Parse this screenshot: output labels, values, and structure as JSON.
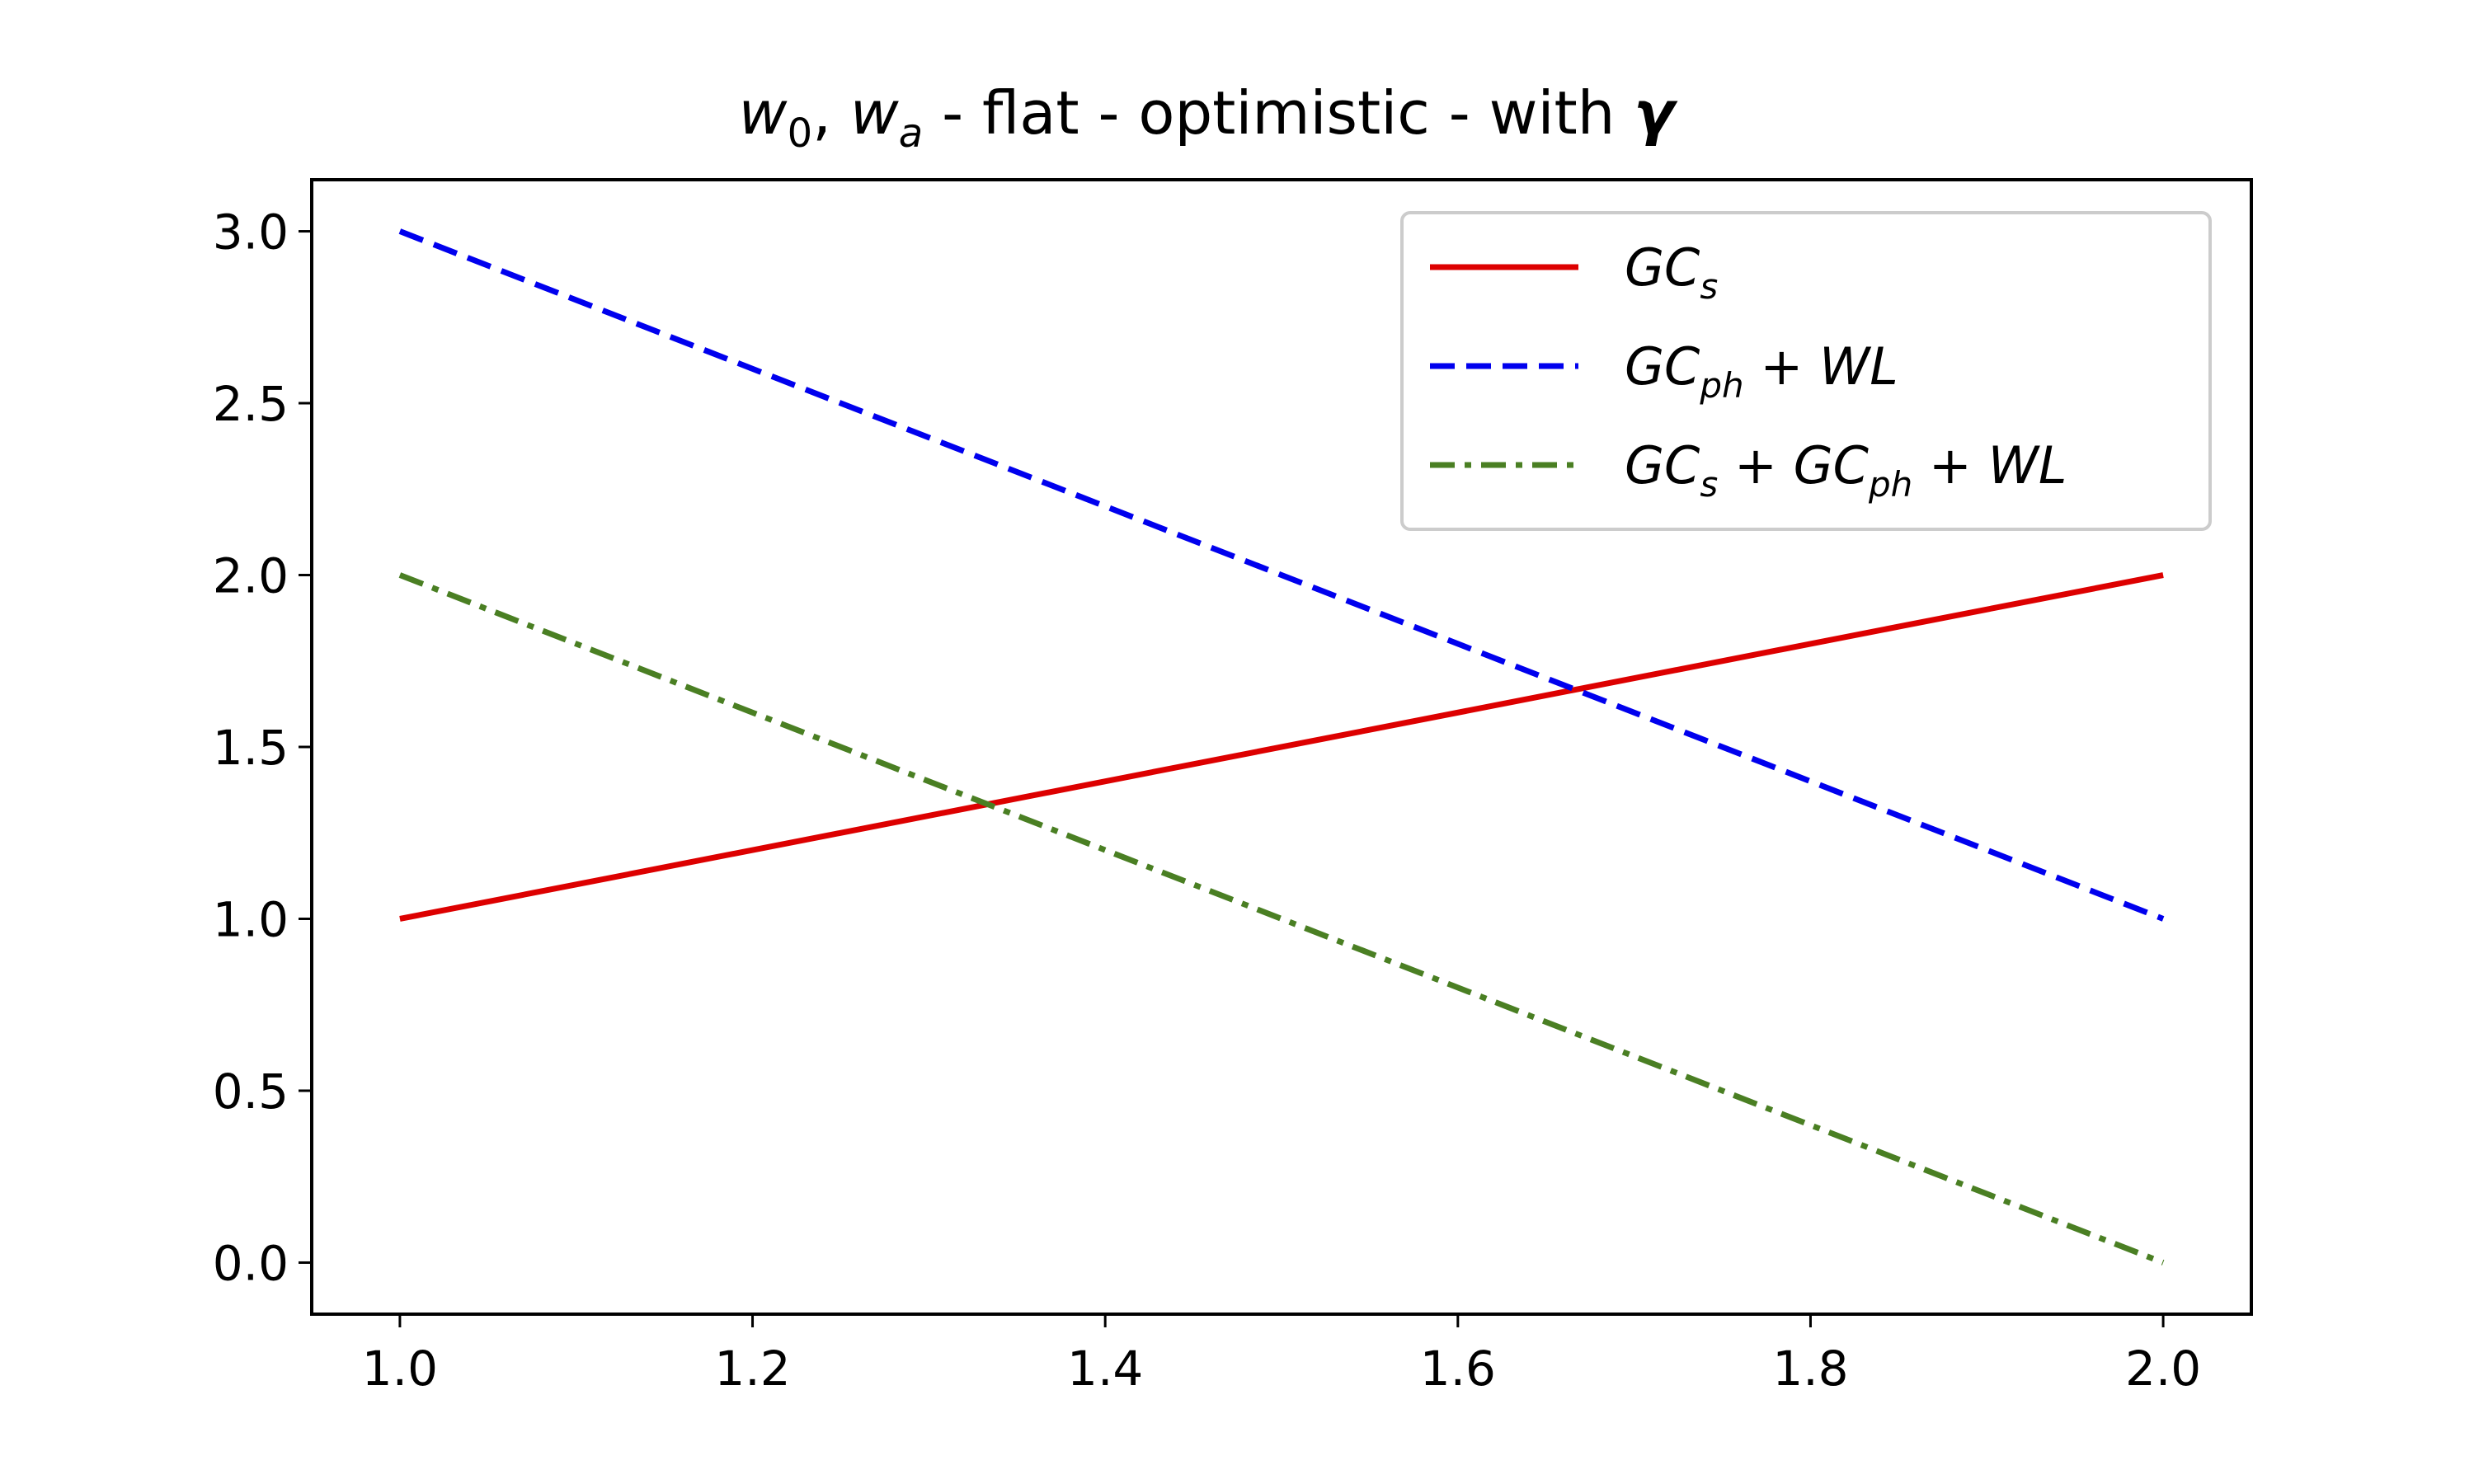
{
  "chart_data": {
    "type": "line",
    "title": "w0, wa - flat - optimistic - with γ",
    "title_parts": {
      "w": "w",
      "sub0": "0",
      "comma": ", ",
      "wa": "w",
      "suba": "a",
      "rest": " - flat - optimistic - with ",
      "gamma": "γ"
    },
    "xlabel": "",
    "ylabel": "",
    "xlim": [
      0.95,
      2.05
    ],
    "ylim": [
      -0.15,
      3.15
    ],
    "xticks": [
      1.0,
      1.2,
      1.4,
      1.6,
      1.8,
      2.0
    ],
    "xtick_labels": [
      "1.0",
      "1.2",
      "1.4",
      "1.6",
      "1.8",
      "2.0"
    ],
    "yticks": [
      0.0,
      0.5,
      1.0,
      1.5,
      2.0,
      2.5,
      3.0
    ],
    "ytick_labels": [
      "0.0",
      "0.5",
      "1.0",
      "1.5",
      "2.0",
      "2.5",
      "3.0"
    ],
    "grid": false,
    "legend_position": "top-right",
    "series": [
      {
        "name": "GC_s",
        "label_parts": [
          "GC",
          "s"
        ],
        "x": [
          1.0,
          2.0
        ],
        "y": [
          1.0,
          2.0
        ],
        "color": "#dd0000",
        "dash": "solid"
      },
      {
        "name": "GC_ph + WL",
        "label_parts": [
          "GC",
          "ph",
          " + WL"
        ],
        "x": [
          1.0,
          2.0
        ],
        "y": [
          3.0,
          1.0
        ],
        "color": "#0000ee",
        "dash": "dashed"
      },
      {
        "name": "GC_s + GC_ph + WL",
        "label_parts": [
          "GC",
          "s",
          " + GC",
          "ph",
          " + WL"
        ],
        "x": [
          1.0,
          2.0
        ],
        "y": [
          2.0,
          0.0
        ],
        "color": "#4a7f23",
        "dash": "dashdot"
      }
    ]
  }
}
